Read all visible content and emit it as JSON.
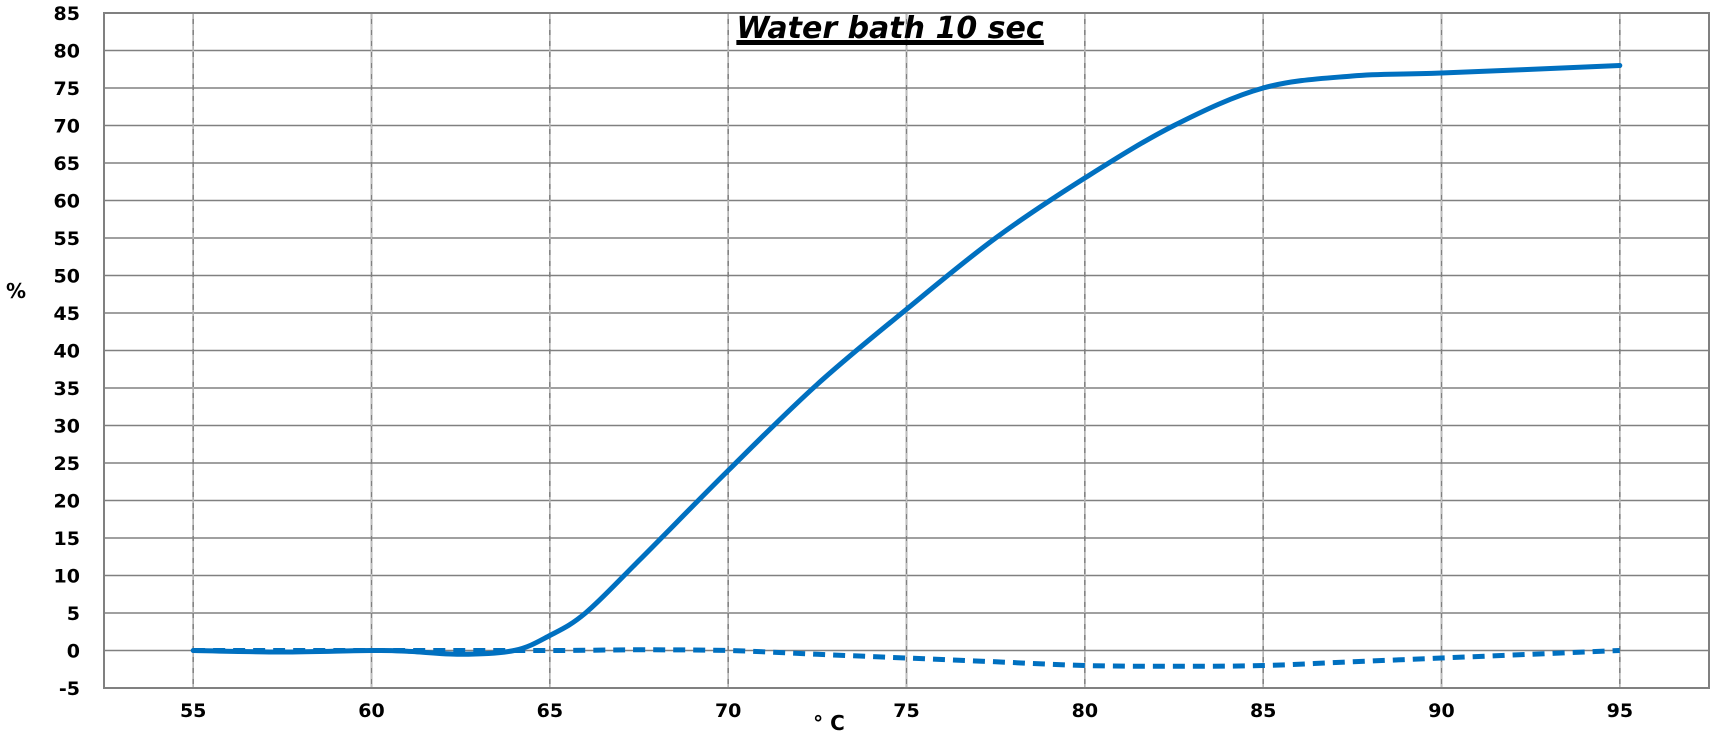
{
  "chart_data": {
    "type": "line",
    "title": "Water bath 10 sec",
    "xlabel": "° C",
    "ylabel": "%",
    "xlim": [
      52.5,
      97.5
    ],
    "ylim": [
      -5,
      85
    ],
    "x_ticks": [
      55,
      60,
      65,
      70,
      75,
      80,
      85,
      90,
      95
    ],
    "y_ticks": [
      85,
      80,
      75,
      70,
      65,
      60,
      55,
      50,
      45,
      40,
      35,
      30,
      25,
      20,
      15,
      10,
      5,
      0,
      -5
    ],
    "grid": true,
    "legend": "none",
    "series": [
      {
        "style": "solid",
        "color": "#0070c0",
        "x": [
          55,
          57.5,
          60,
          61,
          62.5,
          64,
          65,
          66,
          67.5,
          70,
          72.5,
          75,
          77.5,
          80,
          82.5,
          85,
          87.5,
          90,
          95
        ],
        "y": [
          0,
          -0.2,
          0,
          -0.1,
          -0.5,
          0,
          2,
          5,
          12,
          24,
          35.5,
          45.5,
          55,
          63,
          70,
          75,
          76.6,
          77,
          78
        ]
      },
      {
        "style": "dashed",
        "color": "#0070c0",
        "x": [
          55,
          60,
          65,
          67.5,
          70,
          72.5,
          75,
          77.5,
          80,
          82.5,
          85,
          87.5,
          90,
          92.5,
          95
        ],
        "y": [
          0,
          0,
          0,
          0.1,
          0,
          -0.5,
          -1,
          -1.5,
          -2,
          -2.1,
          -2,
          -1.5,
          -1,
          -0.5,
          0
        ]
      }
    ]
  }
}
